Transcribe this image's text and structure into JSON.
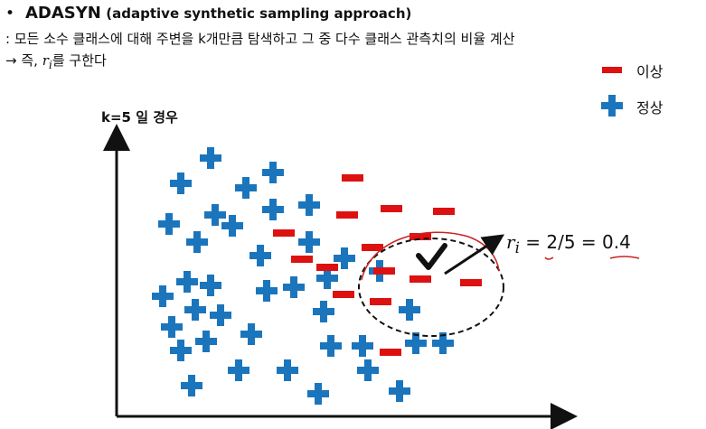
{
  "title": {
    "bullet": "•",
    "keyword": "ADASYN",
    "subtitle": "(adaptive synthetic sampling approach)"
  },
  "description": ": 모든 소수 클래스에 대해 주변을 k개만큼 탐색하고 그 중 다수 클래스 관측치의 비율 계산",
  "result_line": {
    "prefix": "→ 즉, ",
    "symbol": "r",
    "subscript": "i",
    "suffix": "를 구한다"
  },
  "legend": {
    "minority": {
      "label": "이상",
      "icon": "minus-icon",
      "color": "#dd1111"
    },
    "majority": {
      "label": "정상",
      "icon": "plus-icon",
      "color": "#1b75bc"
    }
  },
  "k_label": "k=5 일 경우",
  "equation": {
    "symbol": "r",
    "subscript": "i",
    "expression": " = 2/5 = 0.4"
  },
  "annotation": {
    "check_icon": "check-icon",
    "circle": "neighborhood-circle"
  },
  "colors": {
    "plus": "#1b75bc",
    "minus": "#dd1111",
    "ink": "#111111",
    "annotation": "#cc2222"
  }
}
